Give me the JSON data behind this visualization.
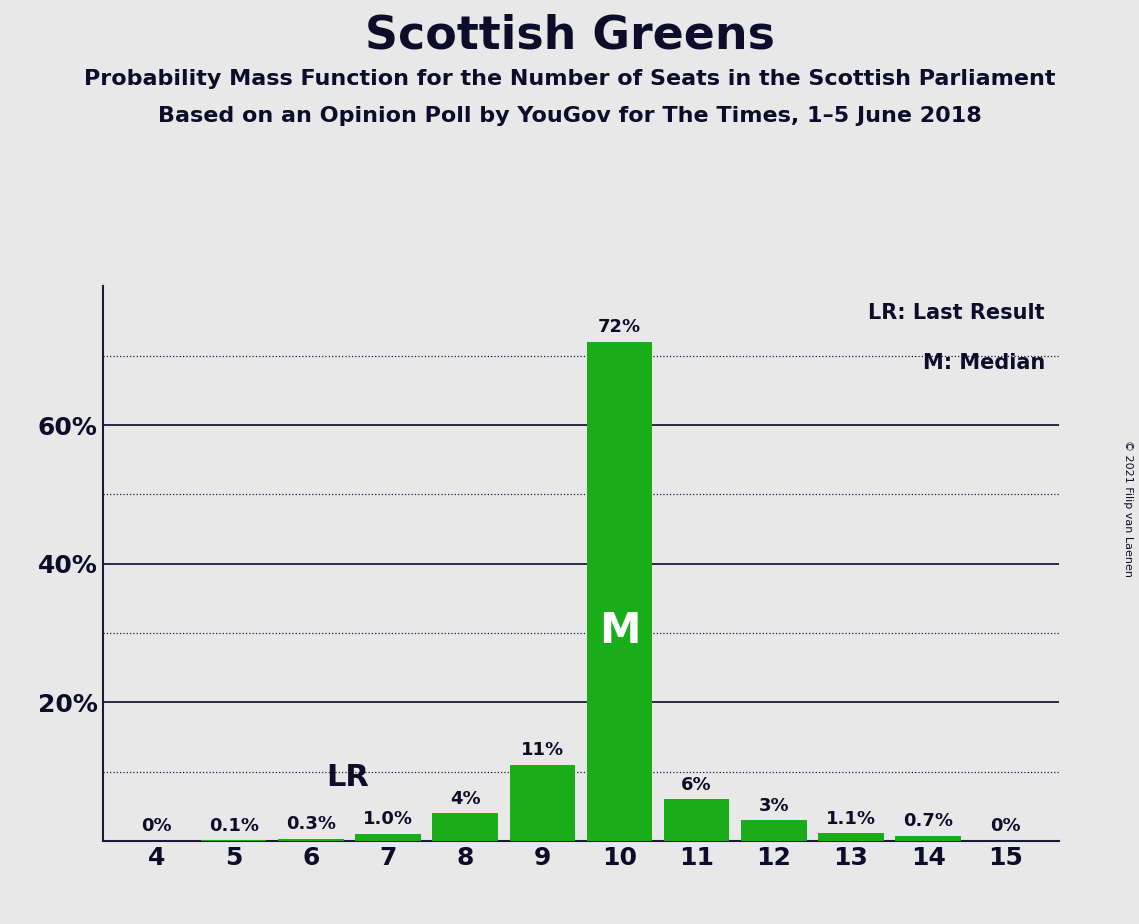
{
  "title": "Scottish Greens",
  "subtitle1": "Probability Mass Function for the Number of Seats in the Scottish Parliament",
  "subtitle2": "Based on an Opinion Poll by YouGov for The Times, 1–5 June 2018",
  "copyright": "© 2021 Filip van Laenen",
  "seats": [
    4,
    5,
    6,
    7,
    8,
    9,
    10,
    11,
    12,
    13,
    14,
    15
  ],
  "values": [
    0.0,
    0.1,
    0.3,
    1.0,
    4.0,
    11.0,
    72.0,
    6.0,
    3.0,
    1.1,
    0.7,
    0.0
  ],
  "labels": [
    "0%",
    "0.1%",
    "0.3%",
    "1.0%",
    "4%",
    "11%",
    "72%",
    "6%",
    "3%",
    "1.1%",
    "0.7%",
    "0%"
  ],
  "bar_color": "#1aad1a",
  "median_seat": 10,
  "lr_seat": 7,
  "background_color": "#e8e8e8",
  "plot_bg_color": "#e8e8e8",
  "title_color": "#0d0d2b",
  "solid_grid": [
    20,
    40,
    60
  ],
  "dotted_grid": [
    10,
    30,
    50,
    70
  ],
  "ylim": [
    0,
    80
  ],
  "xlim_left": 3.3,
  "xlim_right": 15.7,
  "legend_lr": "LR: Last Result",
  "legend_m": "M: Median",
  "bar_width": 0.85
}
